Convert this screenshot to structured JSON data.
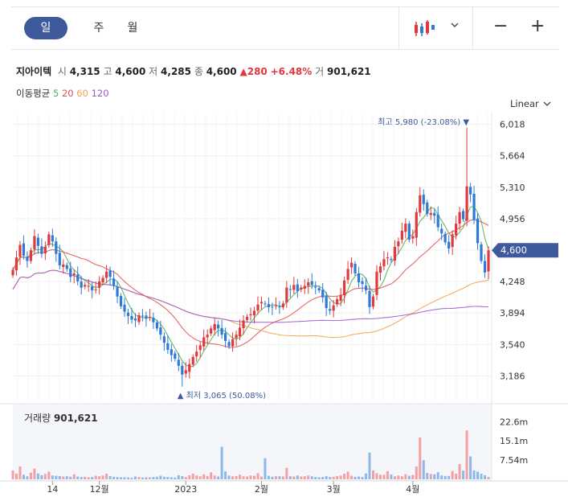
{
  "period_tabs": [
    {
      "label": "일",
      "active": true
    },
    {
      "label": "주",
      "active": false
    },
    {
      "label": "월",
      "active": false
    }
  ],
  "toolbar": {
    "candle_icon": "candlestick-icon",
    "dropdown_icon": "chevron-down-icon",
    "zoom_out": "−",
    "zoom_in": "+"
  },
  "stock": {
    "name": "지아이텍",
    "open_label": "시",
    "open": "4,315",
    "high_label": "고",
    "high": "4,600",
    "low_label": "저",
    "low": "4,285",
    "close_label": "종",
    "close": "4,600",
    "change": "▲280",
    "change_pct": "+6.48%",
    "volume_label": "거",
    "volume": "901,621"
  },
  "moving_average": {
    "label": "이동평균",
    "periods": [
      "5",
      "20",
      "60",
      "120"
    ],
    "colors": [
      "#4caf50",
      "#e05050",
      "#f0a050",
      "#9b59d0"
    ]
  },
  "scale_mode": "Linear",
  "volume_panel": {
    "label": "거래량",
    "value": "901,621"
  },
  "chart_data": {
    "type": "candlestick",
    "y_ticks": [
      "6,018",
      "5,664",
      "5,310",
      "4,956",
      "4,602",
      "4,248",
      "3,894",
      "3,540",
      "3,186"
    ],
    "y_tick_values": [
      6018,
      5664,
      5310,
      4956,
      4602,
      4248,
      3894,
      3540,
      3186
    ],
    "ylim": [
      3000,
      6150
    ],
    "x_ticks": [
      {
        "label": "14",
        "index": 11
      },
      {
        "label": "12월",
        "index": 24
      },
      {
        "label": "2023",
        "index": 48
      },
      {
        "label": "2월",
        "index": 69
      },
      {
        "label": "3월",
        "index": 89
      },
      {
        "label": "4월",
        "index": 111
      }
    ],
    "current_price": "4,600",
    "current_value": 4600,
    "max_annotation": {
      "label": "최고",
      "value": "5,980",
      "pct": "(-23.08%)",
      "index": 126,
      "price": 5980
    },
    "min_annotation": {
      "label": "최저",
      "value": "3,065",
      "pct": "(50.08%)",
      "index": 47,
      "price": 3065
    },
    "volume_ticks": [
      "22.6m",
      "15.1m",
      "7.54m"
    ],
    "volume_tick_values": [
      22.6,
      15.1,
      7.54
    ],
    "up_color": "#e0393e",
    "down_color": "#2d7bd6",
    "closes": [
      4380,
      4520,
      4660,
      4540,
      4480,
      4600,
      4760,
      4650,
      4560,
      4640,
      4780,
      4700,
      4560,
      4430,
      4440,
      4390,
      4300,
      4340,
      4250,
      4180,
      4210,
      4200,
      4150,
      4160,
      4250,
      4290,
      4360,
      4300,
      4200,
      4080,
      3970,
      3910,
      3860,
      3820,
      3810,
      3870,
      3860,
      3830,
      3850,
      3790,
      3720,
      3650,
      3560,
      3480,
      3420,
      3380,
      3300,
      3200,
      3250,
      3320,
      3400,
      3460,
      3530,
      3620,
      3650,
      3720,
      3770,
      3720,
      3650,
      3580,
      3520,
      3600,
      3650,
      3730,
      3810,
      3850,
      3880,
      3920,
      3990,
      4020,
      4000,
      3960,
      3960,
      3980,
      3960,
      4000,
      4180,
      4160,
      4210,
      4140,
      4180,
      4200,
      4240,
      4210,
      4180,
      4150,
      4070,
      3950,
      3920,
      3980,
      4050,
      4100,
      4260,
      4390,
      4460,
      4340,
      4240,
      4220,
      4150,
      3960,
      4080,
      4360,
      4420,
      4500,
      4520,
      4490,
      4640,
      4700,
      4820,
      4900,
      4720,
      4760,
      5030,
      5220,
      5120,
      5010,
      5020,
      4990,
      4860,
      4790,
      4690,
      4620,
      4780,
      4900,
      5030,
      4950,
      5320,
      5230,
      4940,
      4680,
      4480,
      4350,
      4600
    ],
    "volumes": [
      3.5,
      2.2,
      5.1,
      1.8,
      1.2,
      2.6,
      4.2,
      2.3,
      1.6,
      2.1,
      3.0,
      1.5,
      1.4,
      1.3,
      1.1,
      1.2,
      1.0,
      2.0,
      1.1,
      0.9,
      1.0,
      0.8,
      0.9,
      1.4,
      1.2,
      1.5,
      2.2,
      1.3,
      1.0,
      0.9,
      0.8,
      0.8,
      0.7,
      0.6,
      1.1,
      0.9,
      0.7,
      0.8,
      0.8,
      0.9,
      1.0,
      1.4,
      1.0,
      0.9,
      0.8,
      0.7,
      1.6,
      1.3,
      0.9,
      1.6,
      2.2,
      1.5,
      1.2,
      2.0,
      1.3,
      2.7,
      1.5,
      1.1,
      12.8,
      3.1,
      1.5,
      1.2,
      1.3,
      1.8,
      1.2,
      1.1,
      1.5,
      1.4,
      2.4,
      1.1,
      8.3,
      1.4,
      1.0,
      1.3,
      1.2,
      1.1,
      4.5,
      1.2,
      1.1,
      1.5,
      1.1,
      1.2,
      1.5,
      1.2,
      0.9,
      0.8,
      0.9,
      1.2,
      0.9,
      1.0,
      1.3,
      1.5,
      2.2,
      3.0,
      1.4,
      1.0,
      1.1,
      0.9,
      2.3,
      10.5,
      3.5,
      2.4,
      1.8,
      1.8,
      3.2,
      1.9,
      1.2,
      1.5,
      1.2,
      2.0,
      1.4,
      1.7,
      5.0,
      16.4,
      7.5,
      2.5,
      2.1,
      2.0,
      2.8,
      1.5,
      1.3,
      1.3,
      3.3,
      2.2,
      6.0,
      3.4,
      19.2,
      9.0,
      3.5,
      3.0,
      2.2,
      1.6,
      0.9
    ]
  }
}
